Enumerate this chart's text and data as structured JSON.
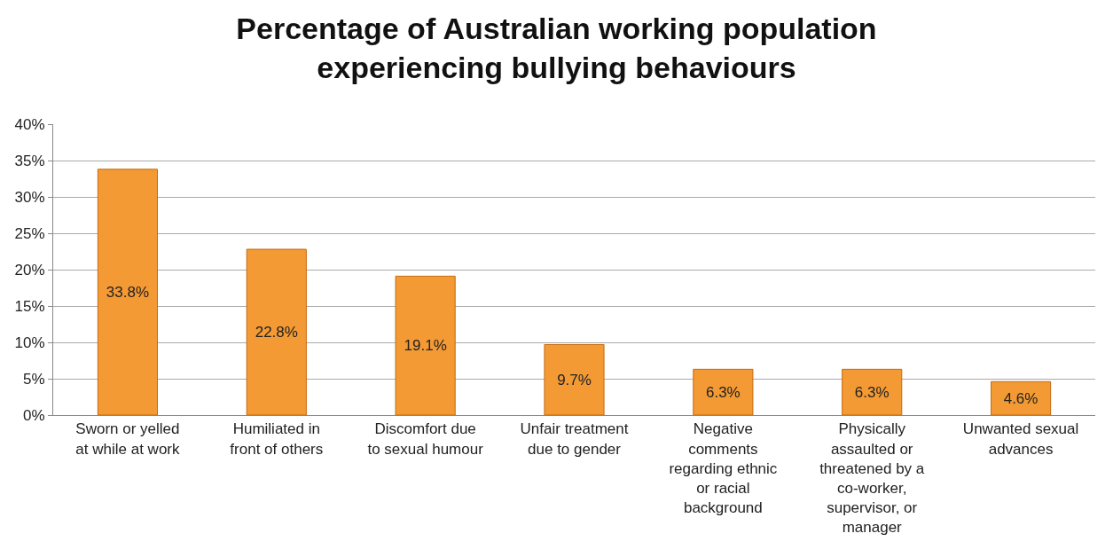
{
  "chart_data": {
    "type": "bar",
    "title": "Percentage of Australian working population experiencing bullying behaviours",
    "categories": [
      "Sworn or yelled at while at work",
      "Humiliated in front of others",
      "Discomfort due to sexual humour",
      "Unfair treatment due to gender",
      "Negative comments regarding ethnic or racial background",
      "Physically assaulted or threatened by a co-worker, supervisor, or manager",
      "Unwanted sexual advances"
    ],
    "values": [
      33.8,
      22.8,
      19.1,
      9.7,
      6.3,
      6.3,
      4.6
    ],
    "value_labels": [
      "33.8%",
      "22.8%",
      "19.1%",
      "9.7%",
      "6.3%",
      "6.3%",
      "4.6%"
    ],
    "color": "#f39a34",
    "ylim": [
      0,
      40
    ],
    "yticks": [
      {
        "value": 0,
        "label": "0%"
      },
      {
        "value": 5,
        "label": "5%"
      },
      {
        "value": 10,
        "label": "10%"
      },
      {
        "value": 15,
        "label": "15%"
      },
      {
        "value": 20,
        "label": "20%"
      },
      {
        "value": 25,
        "label": "25%"
      },
      {
        "value": 30,
        "label": "30%"
      },
      {
        "value": 35,
        "label": "35%"
      },
      {
        "value": 40,
        "label": "40%"
      }
    ],
    "grid": "y"
  }
}
